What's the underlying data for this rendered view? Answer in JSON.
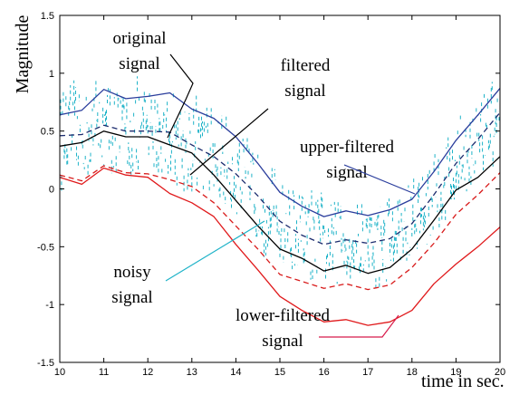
{
  "chart_data": {
    "type": "line",
    "xlabel": "time in sec.",
    "ylabel": "Magnitude",
    "xlim": [
      10,
      20
    ],
    "ylim": [
      -1.5,
      1.5
    ],
    "grid": false,
    "x_ticks": [
      "10",
      "11",
      "12",
      "13",
      "14",
      "15",
      "16",
      "17",
      "18",
      "19",
      "20"
    ],
    "y_ticks": [
      "1.5",
      "1",
      "0.5",
      "0",
      "-0.5",
      "-1",
      "-1.5"
    ],
    "series": [
      {
        "key": "upper-filtered",
        "color": "#2a3d9c",
        "style": "solid",
        "x": [
          10,
          10.5,
          11,
          11.5,
          12,
          12.5,
          13,
          13.5,
          14,
          14.5,
          15,
          15.5,
          16,
          16.5,
          17,
          17.5,
          18,
          18.5,
          19,
          19.5,
          20
        ],
        "y": [
          0.64,
          0.68,
          0.86,
          0.78,
          0.8,
          0.83,
          0.69,
          0.61,
          0.45,
          0.22,
          -0.03,
          -0.15,
          -0.24,
          -0.19,
          -0.23,
          -0.18,
          -0.09,
          0.15,
          0.42,
          0.64,
          0.87
        ]
      },
      {
        "key": "original",
        "color": "#1c2c6e",
        "style": "dashed",
        "x": [
          10,
          10.5,
          11,
          11.5,
          12,
          12.5,
          13,
          13.5,
          14,
          14.5,
          15,
          15.5,
          16,
          16.5,
          17,
          17.5,
          18,
          18.5,
          19,
          19.5,
          20
        ],
        "y": [
          0.46,
          0.47,
          0.55,
          0.5,
          0.5,
          0.49,
          0.38,
          0.28,
          0.13,
          -0.06,
          -0.28,
          -0.4,
          -0.48,
          -0.44,
          -0.47,
          -0.43,
          -0.3,
          -0.05,
          0.22,
          0.43,
          0.66
        ]
      },
      {
        "key": "filtered",
        "color": "#000000",
        "style": "solid",
        "x": [
          10,
          10.5,
          11,
          11.5,
          12,
          12.5,
          13,
          13.5,
          14,
          14.5,
          15,
          15.5,
          16,
          16.5,
          17,
          17.5,
          18,
          18.5,
          19,
          19.5,
          20
        ],
        "y": [
          0.37,
          0.4,
          0.5,
          0.45,
          0.45,
          0.38,
          0.31,
          0.12,
          -0.1,
          -0.32,
          -0.52,
          -0.6,
          -0.71,
          -0.66,
          -0.73,
          -0.68,
          -0.52,
          -0.27,
          -0.01,
          0.1,
          0.28
        ]
      },
      {
        "key": "lower-filtered-dashed",
        "color": "#d81a1a",
        "style": "dashed",
        "x": [
          10,
          10.5,
          11,
          11.5,
          12,
          12.5,
          13,
          13.5,
          14,
          14.5,
          15,
          15.5,
          16,
          16.5,
          17,
          17.5,
          18,
          18.5,
          19,
          19.5,
          20
        ],
        "y": [
          0.12,
          0.07,
          0.2,
          0.14,
          0.13,
          0.08,
          0.02,
          -0.12,
          -0.32,
          -0.52,
          -0.74,
          -0.8,
          -0.86,
          -0.82,
          -0.87,
          -0.83,
          -0.68,
          -0.47,
          -0.22,
          -0.05,
          0.14
        ]
      },
      {
        "key": "lower-filtered",
        "color": "#e0191b",
        "style": "solid",
        "x": [
          10,
          10.5,
          11,
          11.5,
          12,
          12.5,
          13,
          13.5,
          14,
          14.5,
          15,
          15.5,
          16,
          16.5,
          17,
          17.5,
          18,
          18.5,
          19,
          19.5,
          20
        ],
        "y": [
          0.1,
          0.04,
          0.18,
          0.12,
          0.1,
          -0.04,
          -0.12,
          -0.24,
          -0.48,
          -0.7,
          -0.93,
          -1.05,
          -1.15,
          -1.13,
          -1.18,
          -1.15,
          -1.05,
          -0.82,
          -0.65,
          -0.5,
          -0.33
        ]
      }
    ],
    "noisy_signal": {
      "color": "#1fb3c8",
      "style": "vertical dashes around original signal",
      "spread": 0.35
    },
    "annotations": [
      {
        "key": "original",
        "lines": [
          "original",
          "signal"
        ]
      },
      {
        "key": "filtered",
        "lines": [
          "filtered",
          "signal"
        ]
      },
      {
        "key": "upper",
        "lines": [
          "upper-filtered",
          "signal"
        ]
      },
      {
        "key": "noisy",
        "lines": [
          "noisy",
          "signal"
        ]
      },
      {
        "key": "lower",
        "lines": [
          "lower-filtered",
          "signal"
        ]
      }
    ]
  }
}
